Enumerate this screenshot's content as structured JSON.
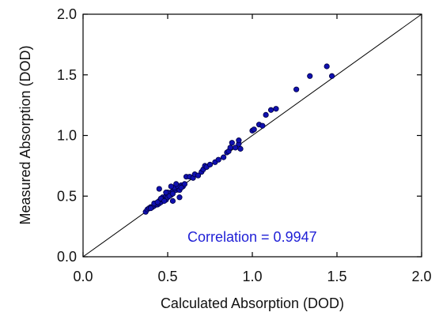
{
  "chart_data": {
    "type": "scatter",
    "title": "",
    "xlabel": "Calculated Absorption (DOD)",
    "ylabel": "Measured Absorption (DOD)",
    "xlim": [
      0.0,
      2.0
    ],
    "ylim": [
      0.0,
      2.0
    ],
    "xticks": [
      "0.0",
      "0.5",
      "1.0",
      "1.5",
      "2.0"
    ],
    "yticks": [
      "0.0",
      "0.5",
      "1.0",
      "1.5",
      "2.0"
    ],
    "grid": false,
    "reference_line": {
      "type": "identity",
      "color": "#000000"
    },
    "annotation": {
      "text": "Correlation = 0.9947",
      "color": "#1f1fd6"
    },
    "marker_fill": "#1010b0",
    "marker_edge": "#000040",
    "series": [
      {
        "points": [
          [
            0.37,
            0.37
          ],
          [
            0.38,
            0.39
          ],
          [
            0.39,
            0.4
          ],
          [
            0.4,
            0.41
          ],
          [
            0.41,
            0.41
          ],
          [
            0.42,
            0.42
          ],
          [
            0.43,
            0.43
          ],
          [
            0.44,
            0.43
          ],
          [
            0.45,
            0.44
          ],
          [
            0.45,
            0.46
          ],
          [
            0.46,
            0.45
          ],
          [
            0.47,
            0.47
          ],
          [
            0.47,
            0.49
          ],
          [
            0.48,
            0.48
          ],
          [
            0.49,
            0.5
          ],
          [
            0.49,
            0.47
          ],
          [
            0.5,
            0.51
          ],
          [
            0.5,
            0.49
          ],
          [
            0.51,
            0.52
          ],
          [
            0.52,
            0.53
          ],
          [
            0.52,
            0.51
          ],
          [
            0.53,
            0.54
          ],
          [
            0.54,
            0.55
          ],
          [
            0.55,
            0.55
          ],
          [
            0.55,
            0.57
          ],
          [
            0.56,
            0.56
          ],
          [
            0.57,
            0.57
          ],
          [
            0.58,
            0.59
          ],
          [
            0.59,
            0.58
          ],
          [
            0.6,
            0.6
          ],
          [
            0.4,
            0.4
          ],
          [
            0.42,
            0.44
          ],
          [
            0.44,
            0.45
          ],
          [
            0.46,
            0.48
          ],
          [
            0.48,
            0.46
          ],
          [
            0.5,
            0.53
          ],
          [
            0.51,
            0.5
          ],
          [
            0.53,
            0.52
          ],
          [
            0.54,
            0.57
          ],
          [
            0.56,
            0.58
          ],
          [
            0.57,
            0.55
          ],
          [
            0.58,
            0.57
          ],
          [
            0.45,
            0.56
          ],
          [
            0.49,
            0.53
          ],
          [
            0.52,
            0.58
          ],
          [
            0.55,
            0.6
          ],
          [
            0.53,
            0.46
          ],
          [
            0.57,
            0.49
          ],
          [
            0.61,
            0.66
          ],
          [
            0.63,
            0.66
          ],
          [
            0.65,
            0.65
          ],
          [
            0.66,
            0.68
          ],
          [
            0.68,
            0.67
          ],
          [
            0.7,
            0.7
          ],
          [
            0.71,
            0.72
          ],
          [
            0.72,
            0.75
          ],
          [
            0.73,
            0.74
          ],
          [
            0.75,
            0.76
          ],
          [
            0.78,
            0.78
          ],
          [
            0.8,
            0.8
          ],
          [
            0.83,
            0.82
          ],
          [
            0.85,
            0.86
          ],
          [
            0.86,
            0.87
          ],
          [
            0.87,
            0.9
          ],
          [
            0.88,
            0.94
          ],
          [
            0.9,
            0.9
          ],
          [
            0.92,
            0.93
          ],
          [
            0.92,
            0.96
          ],
          [
            0.93,
            0.89
          ],
          [
            1.0,
            1.04
          ],
          [
            1.01,
            1.05
          ],
          [
            1.04,
            1.09
          ],
          [
            1.06,
            1.08
          ],
          [
            1.08,
            1.17
          ],
          [
            1.11,
            1.21
          ],
          [
            1.14,
            1.22
          ],
          [
            1.26,
            1.38
          ],
          [
            1.34,
            1.49
          ],
          [
            1.44,
            1.57
          ],
          [
            1.47,
            1.49
          ]
        ]
      }
    ]
  }
}
